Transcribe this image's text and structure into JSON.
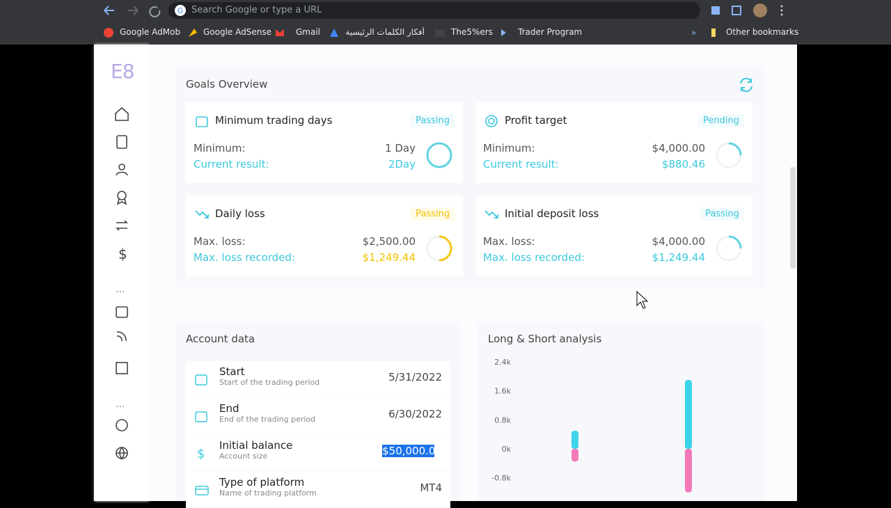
{
  "browser": {
    "search_placeholder": "Search Google or type a URL",
    "bookmarks": [
      "Google AdMob",
      "Google AdSense",
      "Gmail",
      "أفكار الكلمات الرئيسية - 3...",
      "The5%ers",
      "Trader Program"
    ],
    "other_bookmarks": "Other bookmarks"
  },
  "sidebar": {
    "logo": "E8"
  },
  "goals": {
    "title": "Goals Overview",
    "cards": [
      {
        "title": "Minimum trading days",
        "status": "Passing",
        "label1": "Minimum:",
        "value1": "1 Day",
        "label2": "Current result:",
        "value2": "2Day"
      },
      {
        "title": "Profit target",
        "status": "Pending",
        "label1": "Minimum:",
        "value1": "$4,000.00",
        "label2": "Current result:",
        "value2": "$880.46"
      },
      {
        "title": "Daily loss",
        "status": "Passing",
        "label1": "Max. loss:",
        "value1": "$2,500.00",
        "label2": "Max. loss recorded:",
        "value2": "$1,249.44"
      },
      {
        "title": "Initial deposit loss",
        "status": "Passing",
        "label1": "Max. loss:",
        "value1": "$4,000.00",
        "label2": "Max. loss recorded:",
        "value2": "$1,249.44"
      }
    ]
  },
  "account": {
    "title": "Account data",
    "rows": [
      {
        "label": "Start",
        "sub": "Start of the trading period",
        "value": "5/31/2022"
      },
      {
        "label": "End",
        "sub": "End of the trading period",
        "value": "6/30/2022"
      },
      {
        "label": "Initial balance",
        "sub": "Account size",
        "value": "$50,000.00"
      },
      {
        "label": "Type of platform",
        "sub": "Name of trading platform",
        "value": "MT4"
      }
    ]
  },
  "chart_data": {
    "type": "bar",
    "title": "Long & Short analysis",
    "categories": [
      null,
      null
    ],
    "series": [
      {
        "name": "Long",
        "color": "#3dd3e8",
        "values": [
          500,
          1900
        ]
      },
      {
        "name": "Short",
        "color": "#f47ab8",
        "values": [
          -350,
          -1200
        ]
      }
    ],
    "ylim": [
      -1300,
      2400
    ],
    "yticks": [
      {
        "value": 2400,
        "label": "2.4k"
      },
      {
        "value": 1600,
        "label": "1.6k"
      },
      {
        "value": 800,
        "label": "0.8k"
      },
      {
        "value": 0,
        "label": "0k"
      },
      {
        "value": -800,
        "label": "-0.8k"
      }
    ]
  }
}
